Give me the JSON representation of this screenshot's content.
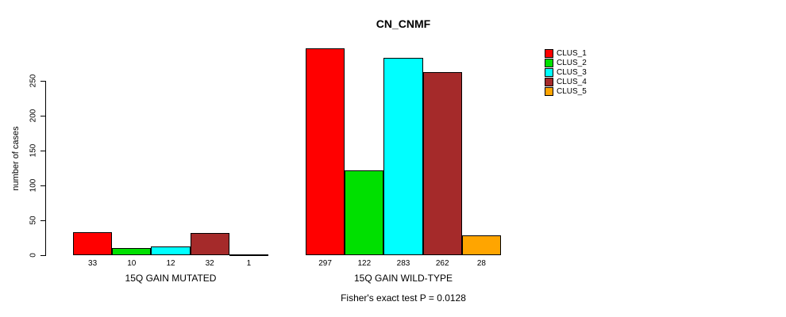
{
  "title": "CN_CNMF",
  "caption": "Fisher's exact test P = 0.0128",
  "chart_data": {
    "type": "bar",
    "title": "CN_CNMF",
    "ylabel": "number of cases",
    "xlabel": "",
    "ylim": [
      0,
      250
    ],
    "yticks": [
      0,
      50,
      100,
      150,
      200,
      250
    ],
    "grid": false,
    "legend_position": "right",
    "categories": [
      "15Q GAIN MUTATED",
      "15Q GAIN WILD-TYPE"
    ],
    "series": [
      {
        "name": "CLUS_1",
        "color": "#FF0000",
        "values": [
          33,
          297
        ]
      },
      {
        "name": "CLUS_2",
        "color": "#00E000",
        "values": [
          10,
          122
        ]
      },
      {
        "name": "CLUS_3",
        "color": "#00FFFF",
        "values": [
          12,
          283
        ]
      },
      {
        "name": "CLUS_4",
        "color": "#A52A2A",
        "values": [
          32,
          262
        ]
      },
      {
        "name": "CLUS_5",
        "color": "#FFA500",
        "values": [
          1,
          28
        ]
      }
    ],
    "bar_value_labels_shown": true,
    "annotation": "Fisher's exact test P = 0.0128"
  }
}
